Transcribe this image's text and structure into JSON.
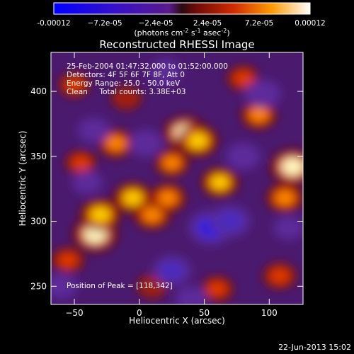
{
  "colorbar": {
    "tick_labels": [
      "-0.00012",
      "−7.2e-05",
      "−2.4e-05",
      "2.4e-05",
      "7.2e-05",
      "0.00012"
    ],
    "unit_label_parts": [
      "(photons cm",
      "-2",
      " s",
      "-1",
      " asec",
      "-2",
      ")"
    ]
  },
  "chart_data": {
    "type": "heatmap",
    "title": "Reconstructed RHESSI Image",
    "xlabel": "Heliocentric X (arcsec)",
    "ylabel": "Heliocentric Y (arcsec)",
    "xlim": [
      -68,
      126
    ],
    "ylim": [
      236,
      430
    ],
    "x_ticks": [
      -50,
      0,
      50,
      100
    ],
    "y_ticks": [
      250,
      300,
      350,
      400
    ],
    "color_range": [
      -0.00012,
      0.00012
    ],
    "blobs": [
      {
        "x": -34,
        "y": 290,
        "value": 0.00012
      },
      {
        "x": -30,
        "y": 305,
        "value": 9.5e-05
      },
      {
        "x": -55,
        "y": 270,
        "value": 5e-05
      },
      {
        "x": -5,
        "y": 318,
        "value": 8.5e-05
      },
      {
        "x": 10,
        "y": 305,
        "value": 7.5e-05
      },
      {
        "x": 22,
        "y": 318,
        "value": 7e-05
      },
      {
        "x": 35,
        "y": 368,
        "value": 0.00011
      },
      {
        "x": 45,
        "y": 362,
        "value": 9.5e-05
      },
      {
        "x": 25,
        "y": 345,
        "value": 6e-05
      },
      {
        "x": 62,
        "y": 330,
        "value": 8e-05
      },
      {
        "x": 92,
        "y": 382,
        "value": 7e-05
      },
      {
        "x": 118,
        "y": 342,
        "value": 0.00012
      },
      {
        "x": 112,
        "y": 318,
        "value": 7.5e-05
      },
      {
        "x": 108,
        "y": 258,
        "value": 5.5e-05
      },
      {
        "x": 60,
        "y": 248,
        "value": 5e-05
      },
      {
        "x": -18,
        "y": 360,
        "value": 7e-05
      },
      {
        "x": -50,
        "y": 405,
        "value": 4.5e-05
      },
      {
        "x": -10,
        "y": 395,
        "value": 4e-05
      },
      {
        "x": 80,
        "y": 410,
        "value": 5e-05
      },
      {
        "x": 10,
        "y": 250,
        "value": 4e-05
      },
      {
        "x": -45,
        "y": 345,
        "value": 4.5e-05
      },
      {
        "x": 55,
        "y": 295,
        "value": -0.00011
      },
      {
        "x": 70,
        "y": 300,
        "value": -9e-05
      },
      {
        "x": 25,
        "y": 262,
        "value": -8e-05
      },
      {
        "x": 95,
        "y": 398,
        "value": -7e-05
      },
      {
        "x": 5,
        "y": 360,
        "value": -6e-05
      },
      {
        "x": -35,
        "y": 370,
        "value": -5e-05
      },
      {
        "x": 80,
        "y": 350,
        "value": -6e-05
      },
      {
        "x": -40,
        "y": 330,
        "value": -4e-05
      },
      {
        "x": 40,
        "y": 240,
        "value": -5e-05
      },
      {
        "x": 115,
        "y": 295,
        "value": -4e-05
      },
      {
        "x": -60,
        "y": 250,
        "value": -5e-05
      },
      {
        "x": 20,
        "y": 415,
        "value": -5e-05
      }
    ],
    "annotations": {
      "time_range": "25-Feb-2004 01:47:32.000 to 01:52:00.000",
      "detectors": "Detectors: 4F 5F 6F 7F 8F, Att 0",
      "energy": "Energy Range: 25.0 - 50.0 keV",
      "method": "Clean     Total counts: 3.38E+03",
      "peak": "Position of Peak = [118,342]"
    }
  },
  "footer": {
    "date": "22-Jun-2013 15:02"
  }
}
